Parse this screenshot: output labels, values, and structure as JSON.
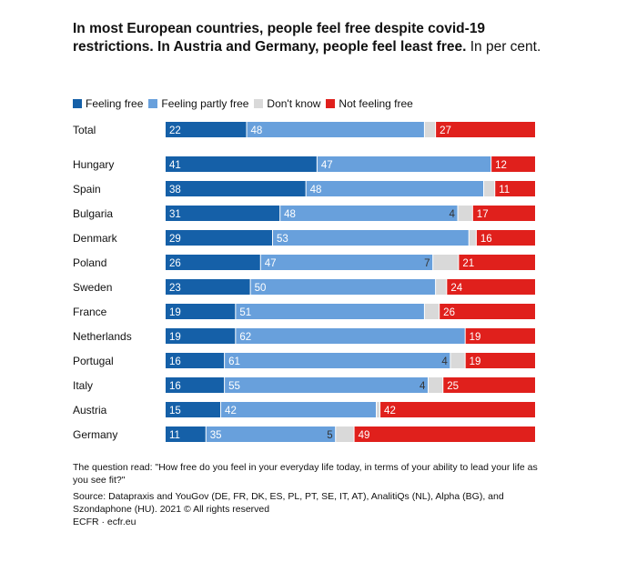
{
  "title": {
    "bold": "In most European countries, people feel free despite covid-19 restrictions. In Austria and Germany, people feel least free.",
    "normal": "In per cent."
  },
  "colors": {
    "free": "#1560a8",
    "partly": "#68a0dc",
    "dontknow": "#d9d9d9",
    "notfree": "#e0201c"
  },
  "chart_data": {
    "type": "bar",
    "orientation": "horizontal",
    "stacked": true,
    "normalized": true,
    "legend_position": "top-left",
    "categories": [
      "Total",
      "Hungary",
      "Spain",
      "Bulgaria",
      "Denmark",
      "Poland",
      "Sweden",
      "France",
      "Netherlands",
      "Portugal",
      "Italy",
      "Austria",
      "Germany"
    ],
    "series": [
      {
        "name": "Feeling free",
        "color": "#1560a8",
        "values": [
          22,
          41,
          38,
          31,
          29,
          26,
          23,
          19,
          19,
          16,
          16,
          15,
          11
        ]
      },
      {
        "name": "Feeling partly free",
        "color": "#68a0dc",
        "values": [
          48,
          47,
          48,
          48,
          53,
          47,
          50,
          51,
          62,
          61,
          55,
          42,
          35
        ]
      },
      {
        "name": "Don't know",
        "color": "#d9d9d9",
        "values": [
          3,
          0,
          3,
          4,
          2,
          7,
          3,
          4,
          0,
          4,
          4,
          1,
          5
        ]
      },
      {
        "name": "Not feeling free",
        "color": "#e0201c",
        "values": [
          27,
          12,
          11,
          17,
          16,
          21,
          24,
          26,
          19,
          19,
          25,
          42,
          49
        ]
      }
    ],
    "labels": [
      [
        "22",
        "48",
        "",
        "27"
      ],
      [
        "41",
        "47",
        "",
        "12"
      ],
      [
        "38",
        "48",
        "",
        "11"
      ],
      [
        "31",
        "48",
        "4",
        "17"
      ],
      [
        "29",
        "53",
        "",
        "16"
      ],
      [
        "26",
        "47",
        "7",
        "21"
      ],
      [
        "23",
        "50",
        "",
        "24"
      ],
      [
        "19",
        "51",
        "",
        "26"
      ],
      [
        "19",
        "62",
        "",
        "19"
      ],
      [
        "16",
        "61",
        "4",
        "19"
      ],
      [
        "16",
        "55",
        "4",
        "25"
      ],
      [
        "15",
        "42",
        "",
        "42"
      ],
      [
        "11",
        "35",
        "5",
        "49"
      ]
    ]
  },
  "notes": {
    "question": "The question read: \"How free do you feel in your everyday life today, in terms of your ability to lead your life as you see fit?\"",
    "source": "Source: Datapraxis and YouGov (DE, FR, DK, ES, PL, PT, SE, IT, AT), AnalitiQs (NL), Alpha (BG), and Szondaphone (HU). 2021 © All rights reserved",
    "credit": "ECFR · ecfr.eu"
  }
}
